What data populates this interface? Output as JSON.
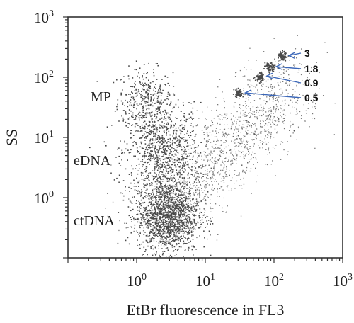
{
  "chart_data": {
    "type": "scatter",
    "title": "",
    "xlabel": "EtBr fluorescence in FL3",
    "ylabel": "SS",
    "x_scale": "log",
    "y_scale": "log",
    "xlim": [
      0.1,
      1000
    ],
    "ylim": [
      0.1,
      1000
    ],
    "grid": false,
    "x_ticks": [
      {
        "value": 1,
        "label_base": "10",
        "label_exp": "0"
      },
      {
        "value": 10,
        "label_base": "10",
        "label_exp": "1"
      },
      {
        "value": 100,
        "label_base": "10",
        "label_exp": "2"
      },
      {
        "value": 1000,
        "label_base": "10",
        "label_exp": "3"
      }
    ],
    "y_ticks": [
      {
        "value": 1,
        "label_base": "10",
        "label_exp": "0"
      },
      {
        "value": 10,
        "label_base": "10",
        "label_exp": "1"
      },
      {
        "value": 100,
        "label_base": "10",
        "label_exp": "2"
      },
      {
        "value": 1000,
        "label_base": "10",
        "label_exp": "3"
      }
    ],
    "populations": [
      {
        "label": "MP",
        "x": 1.3,
        "y": 45,
        "spread_x": 0.2,
        "spread_y": 0.25,
        "count": 320
      },
      {
        "label": "eDNA",
        "x": 2.3,
        "y": 6,
        "spread_x": 0.28,
        "spread_y": 0.4,
        "count": 900
      },
      {
        "label": "ctDNA",
        "x": 2.8,
        "y": 0.5,
        "spread_x": 0.22,
        "spread_y": 0.3,
        "count": 1400
      }
    ],
    "beads": [
      {
        "label": "3",
        "x": 130,
        "y": 230
      },
      {
        "label": "1.8",
        "x": 85,
        "y": 150
      },
      {
        "label": "0.9",
        "x": 62,
        "y": 105
      },
      {
        "label": "0.5",
        "x": 30,
        "y": 55
      }
    ],
    "population_labels": [
      "MP",
      "eDNA",
      "ctDNA"
    ]
  }
}
